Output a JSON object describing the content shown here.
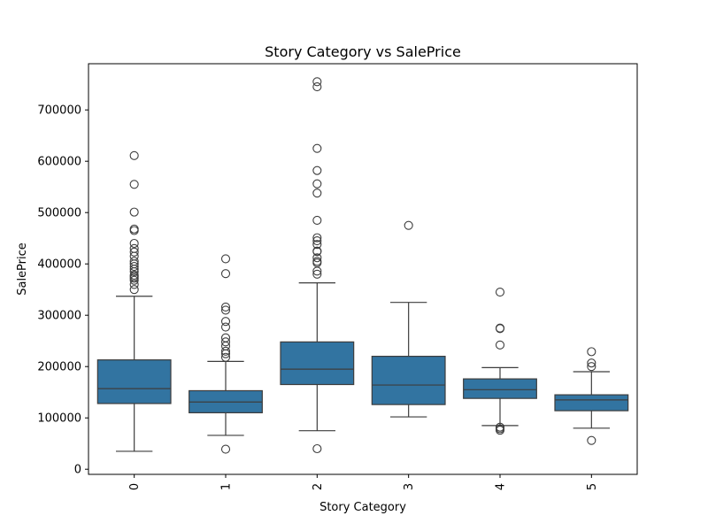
{
  "chart_data": {
    "type": "box",
    "title": "Story Category vs SalePrice",
    "xlabel": "Story Category",
    "ylabel": "SalePrice",
    "ylim": [
      -10000,
      790000
    ],
    "yticks": [
      0,
      100000,
      200000,
      300000,
      400000,
      500000,
      600000,
      700000
    ],
    "ytick_labels": [
      "0",
      "100000",
      "200000",
      "300000",
      "400000",
      "500000",
      "600000",
      "700000"
    ],
    "categories": [
      "0",
      "1",
      "2",
      "3",
      "4",
      "5"
    ],
    "box_color": "#3274a1",
    "edge_color": "#3d3d3d",
    "boxes": [
      {
        "category": "0",
        "whisker_low": 34900,
        "q1": 128000,
        "median": 157000,
        "q3": 213000,
        "whisker_high": 337000,
        "outliers": [
          350000,
          360000,
          368000,
          372000,
          375000,
          378000,
          385000,
          390000,
          395000,
          400000,
          405000,
          415000,
          423000,
          430000,
          440000,
          465000,
          468000,
          501000,
          555000,
          611000
        ]
      },
      {
        "category": "1",
        "whisker_low": 66000,
        "q1": 110000,
        "median": 131000,
        "q3": 153000,
        "whisker_high": 210000,
        "outliers": [
          39000,
          218000,
          225000,
          230000,
          240000,
          248000,
          256000,
          277000,
          288000,
          310000,
          316000,
          381000,
          410000
        ]
      },
      {
        "category": "2",
        "whisker_low": 75000,
        "q1": 165000,
        "median": 195000,
        "q3": 248000,
        "whisker_high": 363000,
        "outliers": [
          40000,
          380000,
          386000,
          402000,
          405000,
          412000,
          424000,
          425000,
          438000,
          445000,
          451000,
          485000,
          538000,
          556000,
          582000,
          625000,
          745000,
          755000
        ]
      },
      {
        "category": "3",
        "whisker_low": 102000,
        "q1": 126000,
        "median": 164000,
        "q3": 220000,
        "whisker_high": 325000,
        "outliers": [
          475000
        ]
      },
      {
        "category": "4",
        "whisker_low": 85000,
        "q1": 138000,
        "median": 155000,
        "q3": 176000,
        "whisker_high": 198000,
        "outliers": [
          76000,
          79000,
          82000,
          242000,
          274000,
          275000,
          345000
        ]
      },
      {
        "category": "5",
        "whisker_low": 80000,
        "q1": 114000,
        "median": 135000,
        "q3": 145000,
        "whisker_high": 190000,
        "outliers": [
          56000,
          200000,
          207000,
          229000
        ]
      }
    ]
  }
}
